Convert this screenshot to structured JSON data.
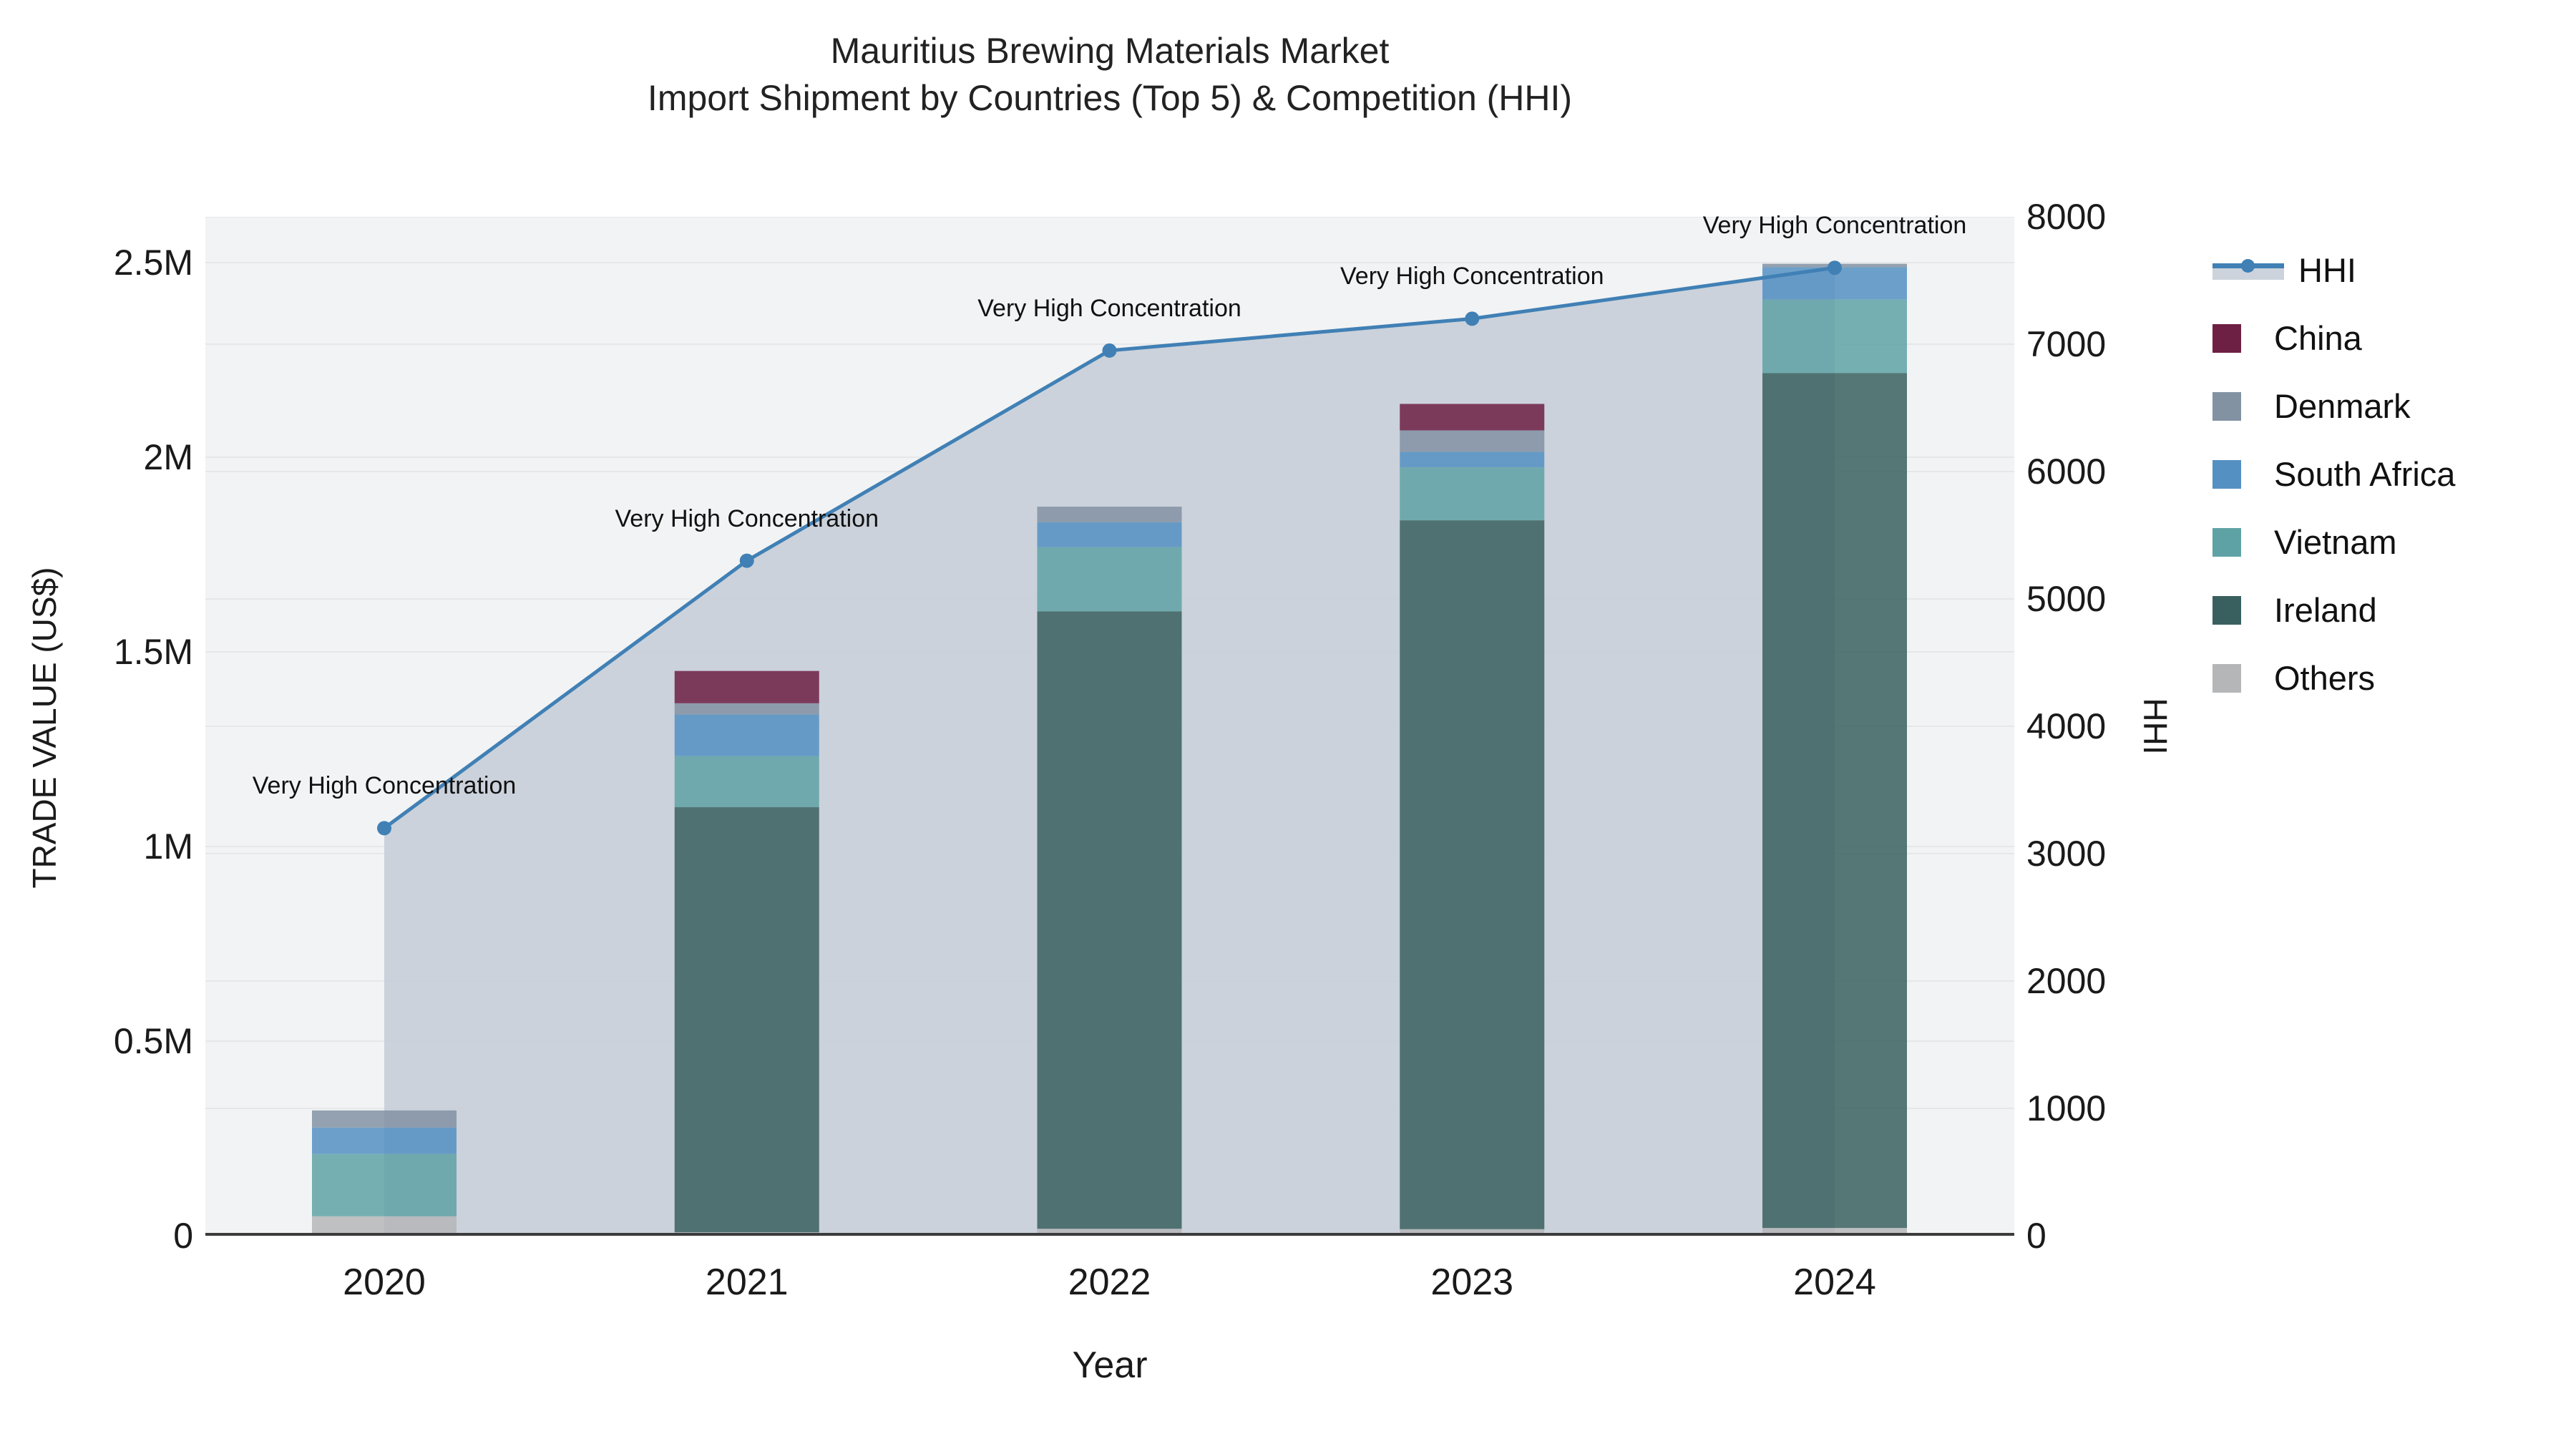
{
  "chart_title": {
    "line1": "Mauritius Brewing Materials Market",
    "line2": "Import Shipment by Countries (Top 5) & Competition (HHI)"
  },
  "axes": {
    "x": {
      "title": "Year",
      "ticks": [
        "2020",
        "2021",
        "2022",
        "2023",
        "2024"
      ]
    },
    "y_left": {
      "title": "TRADE VALUE (US$)",
      "ticks": [
        {
          "label": "0",
          "value": 0
        },
        {
          "label": "0.5M",
          "value": 500000
        },
        {
          "label": "1M",
          "value": 1000000
        },
        {
          "label": "1.5M",
          "value": 1500000
        },
        {
          "label": "2M",
          "value": 2000000
        },
        {
          "label": "2.5M",
          "value": 2500000
        }
      ],
      "range_usd": [
        0,
        2617000
      ]
    },
    "y_right": {
      "title": "HHI",
      "ticks": [
        {
          "label": "0",
          "value": 0
        },
        {
          "label": "1000",
          "value": 1000
        },
        {
          "label": "2000",
          "value": 2000
        },
        {
          "label": "3000",
          "value": 3000
        },
        {
          "label": "4000",
          "value": 4000
        },
        {
          "label": "5000",
          "value": 5000
        },
        {
          "label": "6000",
          "value": 6000
        },
        {
          "label": "7000",
          "value": 7000
        },
        {
          "label": "8000",
          "value": 8000
        }
      ],
      "range": [
        0,
        8000
      ]
    }
  },
  "legend": [
    {
      "label": "HHI",
      "type": "line",
      "color": "#4080b5",
      "band_color": "#ccd3dc"
    },
    {
      "label": "China",
      "type": "swatch",
      "color": "#6e2044"
    },
    {
      "label": "Denmark",
      "type": "swatch",
      "color": "#8292a3"
    },
    {
      "label": "South Africa",
      "type": "swatch",
      "color": "#5590c2"
    },
    {
      "label": "Vietnam",
      "type": "swatch",
      "color": "#5fa2a5"
    },
    {
      "label": "Ireland",
      "type": "swatch",
      "color": "#39605e"
    },
    {
      "label": "Others",
      "type": "swatch",
      "color": "#b5b6b8"
    }
  ],
  "chart_data": {
    "type": "bar+line",
    "title": "Mauritius Brewing Materials Market — Import Shipment by Countries (Top 5) & Competition (HHI)",
    "xlabel": "Year",
    "ylabel_left": "TRADE VALUE (US$)",
    "ylabel_right": "HHI",
    "categories": [
      "2020",
      "2021",
      "2022",
      "2023",
      "2024"
    ],
    "bar_unit": "US$",
    "stack_order_bottom_to_top": [
      "Others",
      "Ireland",
      "Vietnam",
      "South Africa",
      "Denmark",
      "China"
    ],
    "series": [
      {
        "name": "Others",
        "color": "#b5b6b8",
        "values": [
          50000,
          9000,
          18000,
          17000,
          20000
        ]
      },
      {
        "name": "Ireland",
        "color": "#39605e",
        "values": [
          0,
          1092000,
          1586000,
          1821000,
          2196000
        ]
      },
      {
        "name": "Vietnam",
        "color": "#5fa2a5",
        "values": [
          160000,
          131000,
          165000,
          136000,
          189000
        ]
      },
      {
        "name": "South Africa",
        "color": "#5590c2",
        "values": [
          68000,
          107000,
          64000,
          40000,
          83000
        ]
      },
      {
        "name": "Denmark",
        "color": "#8292a3",
        "values": [
          44000,
          29000,
          40000,
          55000,
          9000
        ]
      },
      {
        "name": "China",
        "color": "#6e2044",
        "values": [
          0,
          83000,
          0,
          68000,
          0
        ]
      }
    ],
    "bar_totals_usd": [
      322000,
      1451000,
      1873000,
      2137000,
      2497000
    ],
    "line_series": {
      "name": "HHI",
      "axis": "right",
      "color": "#4080b5",
      "fill_color": "#c7ced8",
      "values": [
        3200,
        5300,
        6950,
        7200,
        7600
      ]
    },
    "annotations": [
      {
        "x": "2020",
        "text": "Very High Concentration"
      },
      {
        "x": "2021",
        "text": "Very High Concentration"
      },
      {
        "x": "2022",
        "text": "Very High Concentration"
      },
      {
        "x": "2023",
        "text": "Very High Concentration"
      },
      {
        "x": "2024",
        "text": "Very High Concentration"
      }
    ],
    "ylim_left_usd": [
      0,
      2617000
    ],
    "ylim_right": [
      0,
      8000
    ],
    "grid": true,
    "legend_position": "right"
  },
  "colors": {
    "paper_bg": "#ffffff",
    "plot_bg": "#f2f3f4",
    "grid": "#e5e7ea",
    "axis_line": "#3b3b3b",
    "annotation_text": "#111111"
  }
}
